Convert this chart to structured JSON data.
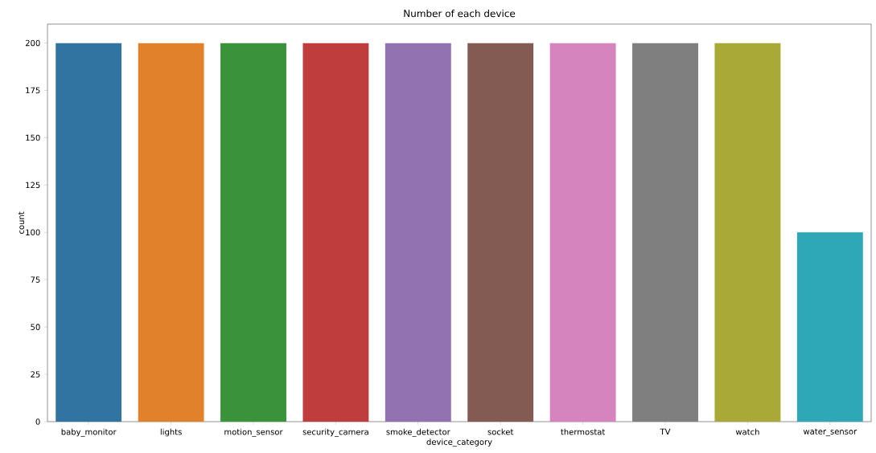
{
  "chart_data": {
    "type": "bar",
    "title": "Number of each device",
    "xlabel": "device_category",
    "ylabel": "count",
    "categories": [
      "baby_monitor",
      "lights",
      "motion_sensor",
      "security_camera",
      "smoke_detector",
      "socket",
      "thermostat",
      "TV",
      "watch",
      "water_sensor"
    ],
    "values": [
      200,
      200,
      200,
      200,
      200,
      200,
      200,
      200,
      200,
      100
    ],
    "colors": [
      "#3274a1",
      "#e1812c",
      "#3a923a",
      "#c03d3e",
      "#9372b2",
      "#845b53",
      "#d684bd",
      "#7f7f7f",
      "#a9aa35",
      "#2ea8b6"
    ],
    "ylim": [
      0,
      210
    ],
    "yticks": [
      0,
      25,
      50,
      75,
      100,
      125,
      150,
      175,
      200
    ],
    "grid": false
  }
}
